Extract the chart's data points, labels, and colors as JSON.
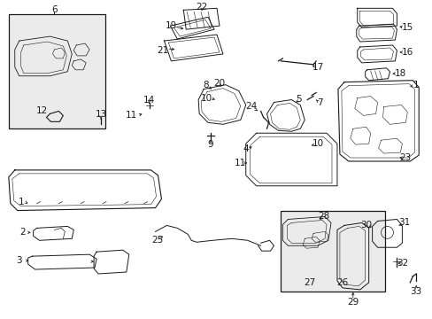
{
  "bg": "#ffffff",
  "ec": "#1a1a1a",
  "lw": 0.65,
  "fs": 7.5,
  "figsize": [
    4.89,
    3.6
  ],
  "dpi": 100
}
